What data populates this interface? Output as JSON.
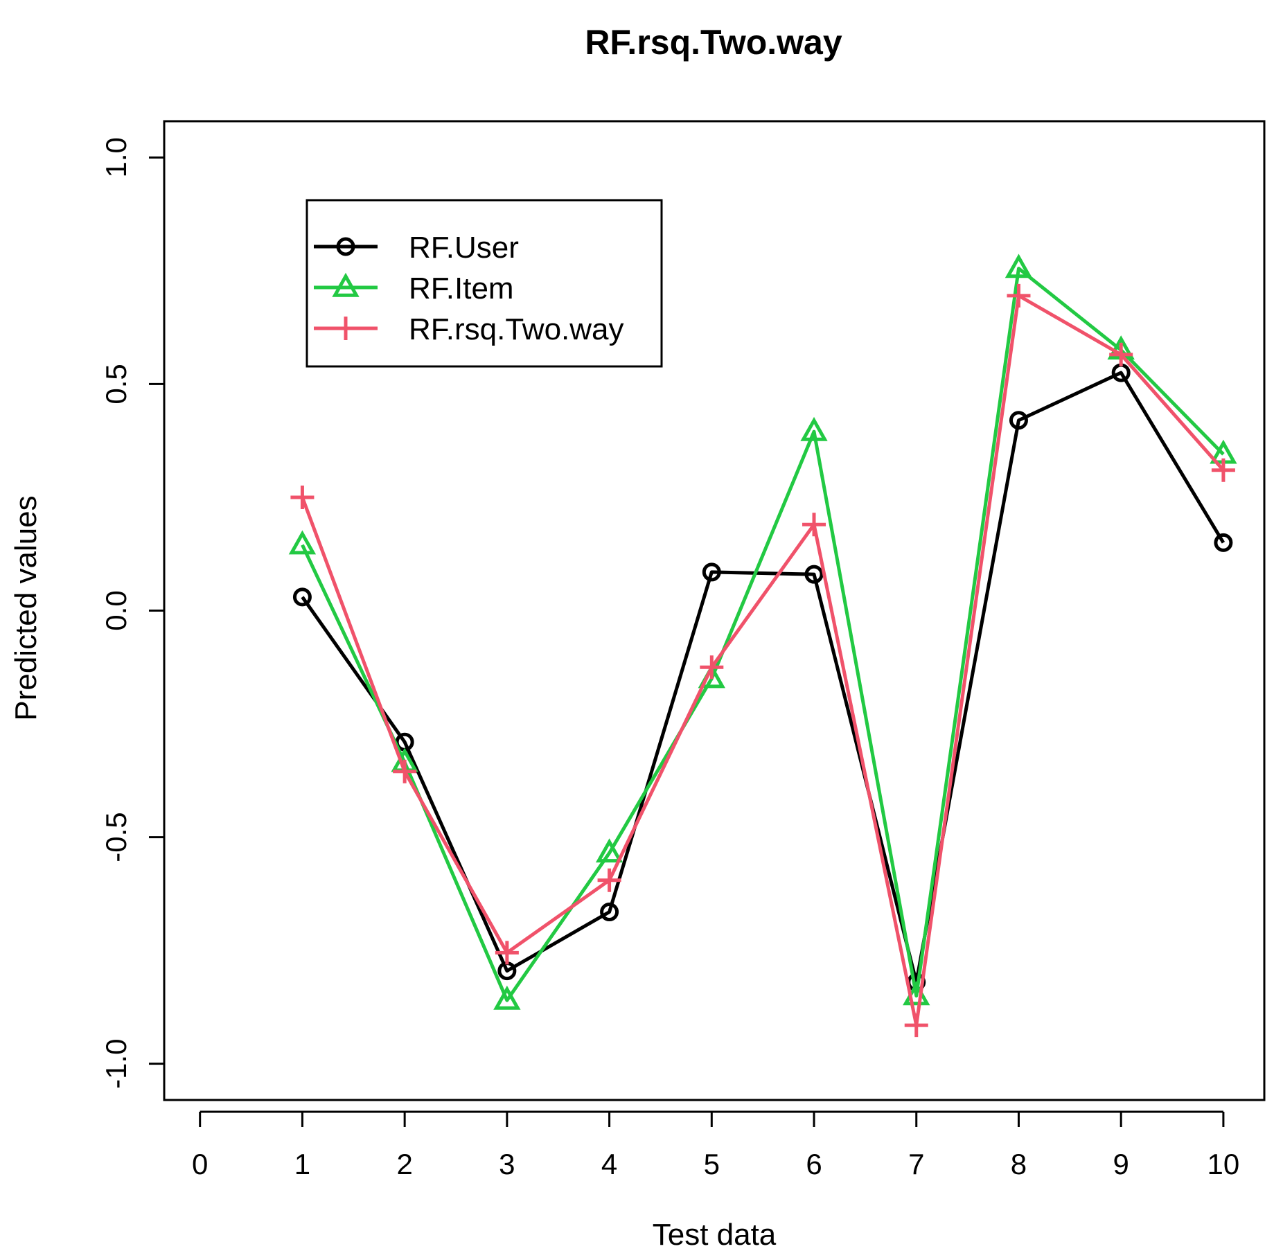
{
  "chart_data": {
    "type": "line",
    "title": "RF.rsq.Two.way",
    "xlabel": "Test data",
    "ylabel": "Predicted values",
    "xlim": [
      -0.35,
      10.4
    ],
    "ylim": [
      -1.08,
      1.08
    ],
    "x_ticks": [
      0,
      1,
      2,
      3,
      4,
      5,
      6,
      7,
      8,
      9,
      10
    ],
    "x_tick_labels": [
      "0",
      "1",
      "2",
      "3",
      "4",
      "5",
      "6",
      "7",
      "8",
      "9",
      "10"
    ],
    "y_ticks": [
      -1.0,
      -0.5,
      0.0,
      0.5,
      1.0
    ],
    "y_tick_labels": [
      "-1.0",
      "-0.5",
      "0.0",
      "0.5",
      "1.0"
    ],
    "grid": false,
    "legend_position": "top-left",
    "x": [
      1,
      2,
      3,
      4,
      5,
      6,
      7,
      8,
      9,
      10
    ],
    "series": [
      {
        "name": "RF.User",
        "color": "#000000",
        "marker": "circle",
        "values": [
          0.03,
          -0.29,
          -0.795,
          -0.665,
          0.085,
          0.08,
          -0.82,
          0.42,
          0.525,
          0.15
        ]
      },
      {
        "name": "RF.Item",
        "color": "#22c943",
        "marker": "triangle",
        "values": [
          0.145,
          -0.335,
          -0.86,
          -0.535,
          -0.15,
          0.395,
          -0.85,
          0.755,
          0.575,
          0.345
        ]
      },
      {
        "name": "RF.rsq.Two.way",
        "color": "#f0526a",
        "marker": "plus",
        "values": [
          0.25,
          -0.355,
          -0.755,
          -0.595,
          -0.125,
          0.19,
          -0.915,
          0.695,
          0.565,
          0.31
        ]
      }
    ]
  }
}
